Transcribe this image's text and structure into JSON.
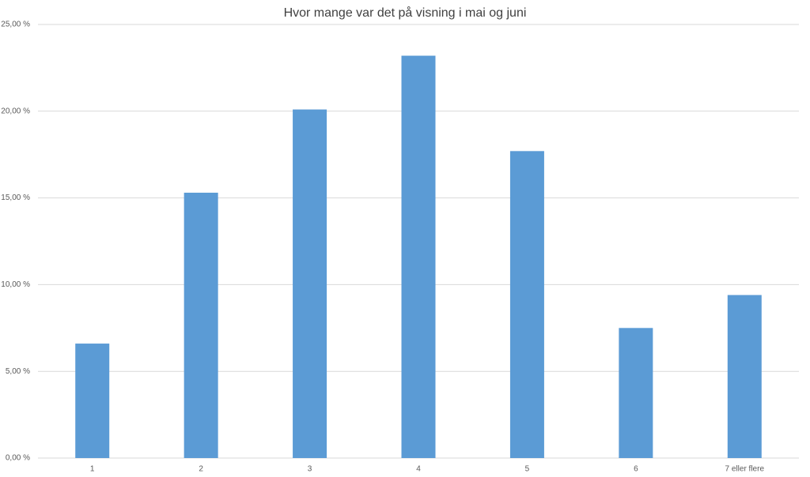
{
  "chart_data": {
    "type": "bar",
    "title": "Hvor mange var det på visning i mai og juni",
    "categories": [
      "1",
      "2",
      "3",
      "4",
      "5",
      "6",
      "7 eller flere"
    ],
    "values": [
      6.6,
      15.3,
      20.1,
      23.2,
      17.7,
      7.5,
      9.4
    ],
    "color": "#5b9bd5",
    "ylim": [
      0,
      25
    ],
    "yticks": [
      {
        "value": 0,
        "label": "0,00 %"
      },
      {
        "value": 5,
        "label": "5,00 %"
      },
      {
        "value": 10,
        "label": "10,00 %"
      },
      {
        "value": 15,
        "label": "15,00 %"
      },
      {
        "value": 20,
        "label": "20,00 %"
      },
      {
        "value": 25,
        "label": "25,00 %"
      }
    ],
    "grid": true
  }
}
